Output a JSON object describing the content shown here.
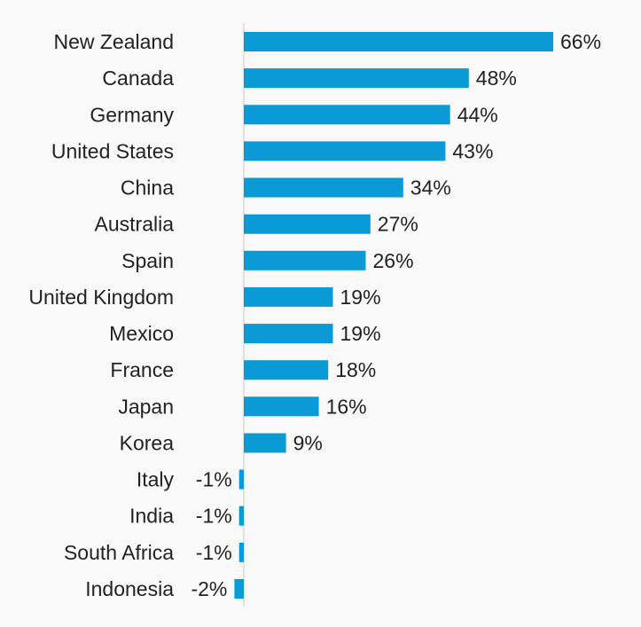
{
  "chart_data": {
    "type": "bar",
    "orientation": "horizontal",
    "categories": [
      "New Zealand",
      "Canada",
      "Germany",
      "United States",
      "China",
      "Australia",
      "Spain",
      "United Kingdom",
      "Mexico",
      "France",
      "Japan",
      "Korea",
      "Italy",
      "India",
      "South Africa",
      "Indonesia"
    ],
    "values": [
      66,
      48,
      44,
      43,
      34,
      27,
      26,
      19,
      19,
      18,
      16,
      9,
      -1,
      -1,
      -1,
      -2
    ],
    "value_labels": [
      "66%",
      "48%",
      "44%",
      "43%",
      "34%",
      "27%",
      "26%",
      "19%",
      "19%",
      "18%",
      "16%",
      "9%",
      "-1%",
      "-1%",
      "-1%",
      "-2%"
    ],
    "title": "",
    "xlabel": "",
    "ylabel": "",
    "grid": false,
    "legend": "none",
    "bar_color": "#0a9ad6",
    "axis_color": "#cccccc"
  }
}
